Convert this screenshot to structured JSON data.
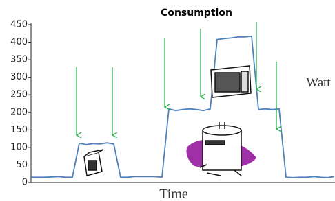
{
  "chart_data": {
    "type": "line",
    "title": "Consumption",
    "x_label": "Time",
    "y_label": "Watt",
    "values": [
      15,
      15,
      15,
      16,
      17,
      15,
      15,
      112,
      108,
      111,
      110,
      113,
      110,
      15,
      15,
      17,
      17,
      17,
      17,
      15,
      210,
      205,
      208,
      210,
      208,
      205,
      210,
      408,
      410,
      412,
      415,
      415,
      417,
      208,
      210,
      208,
      210,
      15,
      14,
      15,
      15,
      17,
      15,
      14,
      17
    ],
    "color": "#4f81bd",
    "ylim": [
      0,
      450
    ],
    "yticks": [
      0,
      50,
      100,
      150,
      200,
      250,
      300,
      350,
      400,
      450
    ]
  }
}
